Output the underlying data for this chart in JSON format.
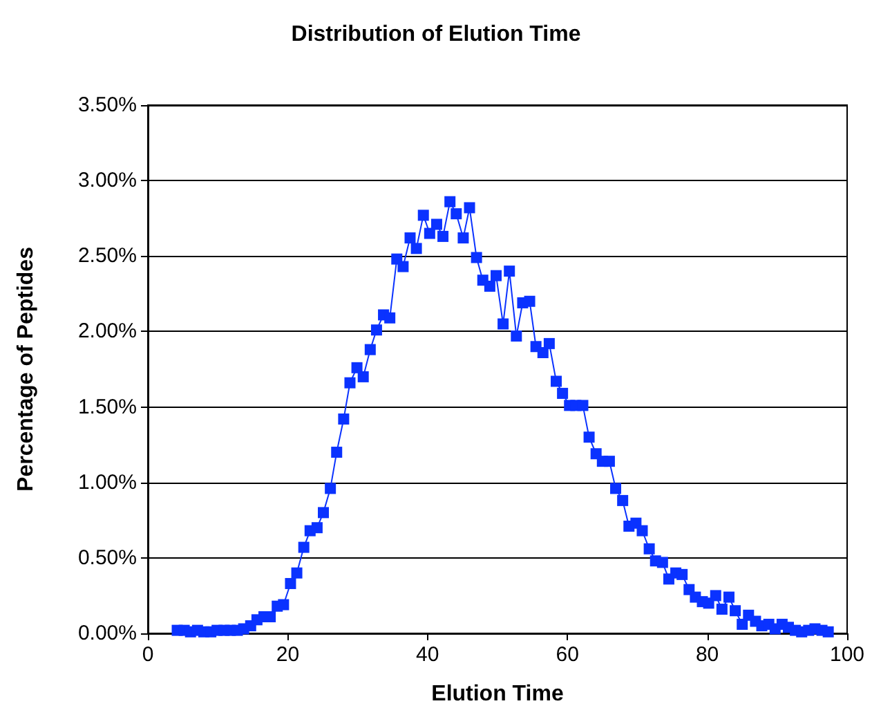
{
  "chart_data": {
    "type": "line",
    "title": "Distribution of Elution Time",
    "xlabel": "Elution Time",
    "ylabel": "Percentage of Peptides",
    "x": [
      4.2,
      5.2,
      6.1,
      7.1,
      8.0,
      9.0,
      9.9,
      10.9,
      11.8,
      12.8,
      13.7,
      14.7,
      15.6,
      16.6,
      17.5,
      18.5,
      19.4,
      20.4,
      21.3,
      22.3,
      23.2,
      24.2,
      25.1,
      26.1,
      27.0,
      28.0,
      28.9,
      29.9,
      30.8,
      31.8,
      32.7,
      33.7,
      34.6,
      35.6,
      36.5,
      37.5,
      38.4,
      39.4,
      40.3,
      41.3,
      42.2,
      43.2,
      44.1,
      45.1,
      46.0,
      47.0,
      47.9,
      48.9,
      49.8,
      50.8,
      51.7,
      52.7,
      53.6,
      54.6,
      55.5,
      56.5,
      57.4,
      58.4,
      59.3,
      60.3,
      61.2,
      62.2,
      63.1,
      64.1,
      65.0,
      66.0,
      66.9,
      67.9,
      68.8,
      69.8,
      70.7,
      71.7,
      72.6,
      73.6,
      74.5,
      75.5,
      76.4,
      77.4,
      78.3,
      79.3,
      80.2,
      81.2,
      82.1,
      83.1,
      84.0,
      85.0,
      85.9,
      86.9,
      87.8,
      88.8,
      89.7,
      90.7,
      91.6,
      92.6,
      93.5,
      94.5,
      95.4,
      96.4,
      97.3
    ],
    "series": [
      {
        "color": "#0a32ff",
        "values": [
          0.02,
          0.02,
          0.01,
          0.02,
          0.01,
          0.01,
          0.02,
          0.02,
          0.02,
          0.02,
          0.03,
          0.05,
          0.09,
          0.11,
          0.11,
          0.18,
          0.19,
          0.33,
          0.4,
          0.57,
          0.68,
          0.7,
          0.8,
          0.96,
          1.2,
          1.42,
          1.66,
          1.76,
          1.7,
          1.88,
          2.01,
          2.11,
          2.09,
          2.48,
          2.43,
          2.62,
          2.55,
          2.77,
          2.65,
          2.71,
          2.63,
          2.86,
          2.78,
          2.62,
          2.82,
          2.49,
          2.34,
          2.3,
          2.37,
          2.05,
          2.4,
          1.97,
          2.19,
          2.2,
          1.9,
          1.86,
          1.92,
          1.67,
          1.59,
          1.51,
          1.51,
          1.51,
          1.3,
          1.19,
          1.14,
          1.14,
          0.96,
          0.88,
          0.71,
          0.73,
          0.68,
          0.56,
          0.48,
          0.47,
          0.36,
          0.4,
          0.39,
          0.29,
          0.24,
          0.21,
          0.2,
          0.25,
          0.16,
          0.24,
          0.15,
          0.06,
          0.12,
          0.08,
          0.05,
          0.06,
          0.03,
          0.06,
          0.04,
          0.02,
          0.01,
          0.02,
          0.03,
          0.02,
          0.01
        ]
      }
    ],
    "xlim": [
      0,
      100
    ],
    "xticks": [
      0,
      20,
      40,
      60,
      80,
      100
    ],
    "ylim": [
      0,
      3.5
    ],
    "yticks": [
      {
        "value": 0,
        "label": "0.00%"
      },
      {
        "value": 0.5,
        "label": "0.50%"
      },
      {
        "value": 1,
        "label": "1.00%"
      },
      {
        "value": 1.5,
        "label": "1.50%"
      },
      {
        "value": 2,
        "label": "2.00%"
      },
      {
        "value": 2.5,
        "label": "2.50%"
      },
      {
        "value": 3,
        "label": "3.00%"
      },
      {
        "value": 3.5,
        "label": "3.50%"
      }
    ],
    "grid": "y",
    "marker": "square",
    "line_style": "solid"
  }
}
